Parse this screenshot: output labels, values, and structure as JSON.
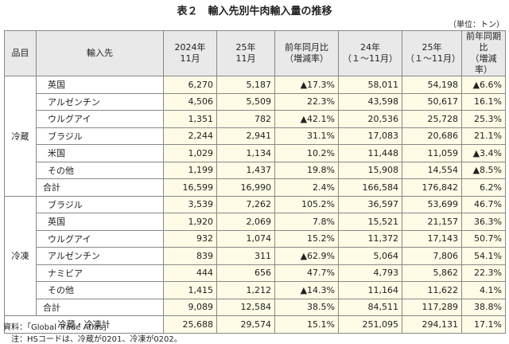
{
  "title": "表２　輸入先別牛肉輸入量の推移",
  "unit": "（単位：トン）",
  "table": {
    "header": {
      "category": "品目",
      "source": "輸入先",
      "columns": [
        "2024年\n11月",
        "25年\n11月",
        "前年同月比\n（増減率）",
        "24年\n（１～11月）",
        "25年\n（１～11月）",
        "前年同期比\n（増減率）"
      ]
    },
    "groups": [
      {
        "name": "冷蔵",
        "rows": [
          {
            "source": "英国",
            "values": [
              "6,270",
              "5,187",
              "▲17.3%",
              "58,011",
              "54,198",
              "▲6.6%"
            ]
          },
          {
            "source": "アルゼンチン",
            "values": [
              "4,506",
              "5,509",
              "22.3%",
              "43,598",
              "50,617",
              "16.1%"
            ]
          },
          {
            "source": "ウルグアイ",
            "values": [
              "1,351",
              "782",
              "▲42.1%",
              "20,536",
              "25,728",
              "25.3%"
            ]
          },
          {
            "source": "ブラジル",
            "values": [
              "2,244",
              "2,941",
              "31.1%",
              "17,083",
              "20,686",
              "21.1%"
            ]
          },
          {
            "source": "米国",
            "values": [
              "1,029",
              "1,134",
              "10.2%",
              "11,448",
              "11,059",
              "▲3.4%"
            ]
          },
          {
            "source": "その他",
            "values": [
              "1,199",
              "1,437",
              "19.8%",
              "15,908",
              "14,554",
              "▲8.5%"
            ]
          },
          {
            "source": "合計",
            "values": [
              "16,599",
              "16,990",
              "2.4%",
              "166,584",
              "176,842",
              "6.2%"
            ]
          }
        ]
      },
      {
        "name": "冷凍",
        "rows": [
          {
            "source": "ブラジル",
            "values": [
              "3,539",
              "7,262",
              "105.2%",
              "36,597",
              "53,699",
              "46.7%"
            ]
          },
          {
            "source": "英国",
            "values": [
              "1,920",
              "2,069",
              "7.8%",
              "15,521",
              "21,157",
              "36.3%"
            ]
          },
          {
            "source": "ウルグアイ",
            "values": [
              "932",
              "1,074",
              "15.2%",
              "11,372",
              "17,143",
              "50.7%"
            ]
          },
          {
            "source": "アルゼンチン",
            "values": [
              "839",
              "311",
              "▲62.9%",
              "5,064",
              "7,806",
              "54.1%"
            ]
          },
          {
            "source": "ナミビア",
            "values": [
              "444",
              "656",
              "47.7%",
              "4,793",
              "5,862",
              "22.3%"
            ]
          },
          {
            "source": "その他",
            "values": [
              "1,415",
              "1,212",
              "▲14.3%",
              "11,164",
              "11,622",
              "4.1%"
            ]
          },
          {
            "source": "合計",
            "values": [
              "9,089",
              "12,584",
              "38.5%",
              "84,511",
              "117,289",
              "38.8%"
            ]
          }
        ]
      }
    ],
    "grand_total": {
      "label": "冷蔵・冷凍計",
      "values": [
        "25,688",
        "29,574",
        "15.1%",
        "251,095",
        "294,131",
        "17.1%"
      ]
    }
  },
  "notes": [
    "資料：「Global Trade Atlas」",
    "注：HSコードは、冷蔵が0201、冷凍が0202。"
  ]
}
